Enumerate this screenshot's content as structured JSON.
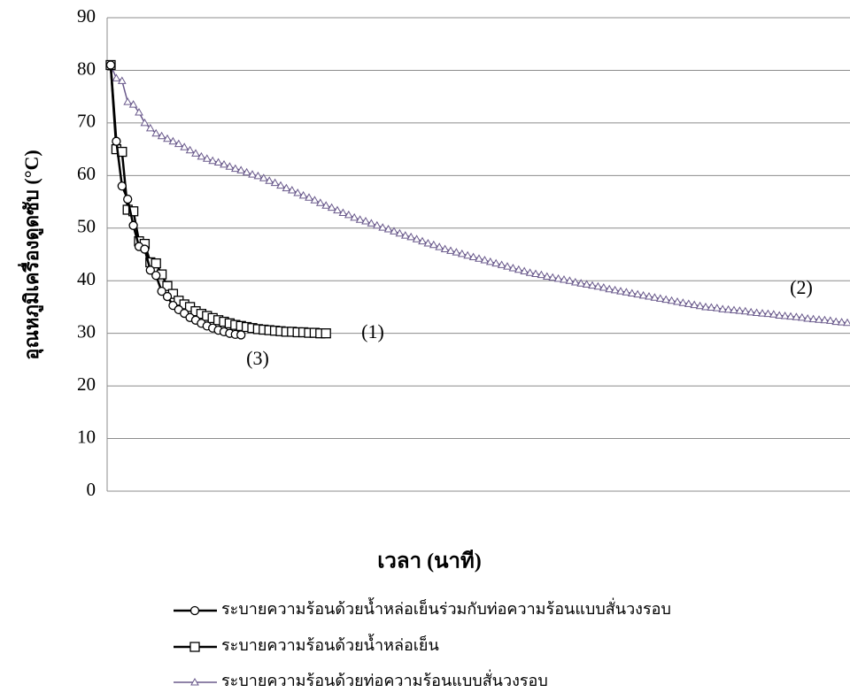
{
  "chart_data": {
    "type": "line",
    "y_label": "อุณหภูมิเครื่องดูดซับ (°C)",
    "x_label": "เวลา (นาที)",
    "ylim": [
      0,
      90
    ],
    "yticks": [
      0,
      10,
      20,
      30,
      40,
      50,
      60,
      70,
      80,
      90
    ],
    "grid": true,
    "annotations": [
      "(1)",
      "(2)",
      "(3)"
    ],
    "categories": [
      null,
      null,
      null,
      null,
      null,
      null,
      null,
      null,
      null,
      null,
      null,
      null,
      null,
      null,
      null,
      null,
      null,
      null,
      null,
      null,
      null,
      null,
      null,
      null,
      null,
      null,
      null,
      null,
      null,
      null,
      null,
      null,
      null,
      null,
      null,
      null,
      null,
      null,
      null,
      null,
      null,
      null,
      null,
      null,
      null,
      null,
      null,
      null,
      null,
      null,
      null,
      null,
      null,
      null,
      null,
      null,
      null,
      null,
      null,
      null,
      null,
      null,
      null,
      null,
      null,
      null,
      null,
      null,
      null,
      null,
      null,
      null,
      null,
      null,
      null,
      null,
      null,
      null,
      null,
      null,
      null,
      null,
      null,
      null,
      null,
      null,
      null,
      null,
      null,
      null,
      null,
      null,
      null,
      null,
      null,
      null,
      null,
      null,
      null,
      null,
      null,
      null,
      null,
      null,
      null,
      null,
      null,
      null,
      null,
      null,
      null,
      null,
      null,
      null,
      null,
      null,
      null,
      null,
      null,
      null,
      null,
      null,
      null,
      null,
      null,
      null,
      null,
      null,
      null,
      null,
      null
    ],
    "series": [
      {
        "name": "ระบายความร้อนด้วยน้ำหล่อเย็นร่วมกับท่อความร้อนแบบสั่นวงรอบ",
        "color": "#000000",
        "marker": "circle",
        "values": [
          81,
          66.5,
          58,
          55.5,
          50.5,
          46.5,
          46,
          42,
          41,
          38,
          37,
          35.3,
          34.5,
          33.8,
          33,
          32.5,
          31.9,
          31.4,
          31,
          30.6,
          30.3,
          30,
          29.8,
          29.7,
          null,
          null,
          null,
          null,
          null,
          null,
          null,
          null,
          null,
          null,
          null,
          null,
          null,
          null,
          null,
          null,
          null,
          null,
          null,
          null,
          null,
          null,
          null,
          null,
          null,
          null,
          null,
          null,
          null,
          null,
          null,
          null,
          null,
          null,
          null,
          null,
          null,
          null,
          null,
          null,
          null,
          null,
          null,
          null,
          null,
          null,
          null,
          null,
          null,
          null,
          null,
          null,
          null,
          null,
          null,
          null,
          null,
          null,
          null,
          null,
          null,
          null,
          null,
          null,
          null,
          null,
          null,
          null,
          null,
          null,
          null,
          null,
          null,
          null,
          null,
          null,
          null,
          null,
          null,
          null,
          null,
          null,
          null,
          null,
          null,
          null,
          null,
          null,
          null,
          null,
          null,
          null,
          null,
          null,
          null,
          null,
          null,
          null,
          null,
          null,
          null,
          null,
          null,
          null,
          null,
          null,
          null
        ]
      },
      {
        "name": "ระบายความร้อนด้วยน้ำหล่อเย็น",
        "color": "#000000",
        "marker": "square",
        "values": [
          81,
          65,
          64.5,
          53.5,
          53.2,
          47.5,
          47,
          43.5,
          43.3,
          41.2,
          39,
          37.5,
          36.2,
          35.5,
          35,
          34.2,
          33.7,
          33.3,
          32.9,
          32.5,
          32.2,
          31.9,
          31.6,
          31.4,
          31.2,
          31,
          30.8,
          30.7,
          30.6,
          30.5,
          30.4,
          30.3,
          30.3,
          30.2,
          30.2,
          30.1,
          30.1,
          30,
          30,
          null,
          null,
          null,
          null,
          null,
          null,
          null,
          null,
          null,
          null,
          null,
          null,
          null,
          null,
          null,
          null,
          null,
          null,
          null,
          null,
          null,
          null,
          null,
          null,
          null,
          null,
          null,
          null,
          null,
          null,
          null,
          null,
          null,
          null,
          null,
          null,
          null,
          null,
          null,
          null,
          null,
          null,
          null,
          null,
          null,
          null,
          null,
          null,
          null,
          null,
          null,
          null,
          null,
          null,
          null,
          null,
          null,
          null,
          null,
          null,
          null,
          null,
          null,
          null,
          null,
          null,
          null,
          null,
          null,
          null,
          null,
          null,
          null,
          null,
          null,
          null,
          null,
          null,
          null,
          null,
          null,
          null,
          null,
          null,
          null,
          null,
          null,
          null,
          null,
          null,
          null,
          null
        ]
      },
      {
        "name": "ระบายความร้อนด้วยท่อความร้อนแบบสั่นวงรอบ",
        "color": "#6a5a8c",
        "marker": "triangle",
        "values": [
          81,
          78.5,
          78,
          74,
          73.5,
          72,
          70,
          69,
          68,
          67.5,
          67,
          66.5,
          66,
          65.4,
          64.8,
          64.2,
          63.6,
          63.2,
          62.8,
          62.5,
          62.1,
          61.7,
          61.3,
          61,
          60.6,
          60.2,
          59.9,
          59.5,
          59,
          58.6,
          58.1,
          57.6,
          57.2,
          56.7,
          56.2,
          55.8,
          55.3,
          54.8,
          54.3,
          53.9,
          53.4,
          52.9,
          52.5,
          52,
          51.6,
          51.3,
          50.9,
          50.5,
          50.1,
          49.8,
          49.4,
          49,
          48.6,
          48.3,
          47.9,
          47.5,
          47.1,
          46.8,
          46.4,
          46,
          45.7,
          45.4,
          45.1,
          44.8,
          44.5,
          44.2,
          43.9,
          43.6,
          43.3,
          43,
          42.7,
          42.4,
          42.1,
          41.8,
          41.5,
          41.3,
          41.1,
          40.8,
          40.6,
          40.4,
          40.2,
          40,
          39.7,
          39.5,
          39.3,
          39.1,
          38.9,
          38.7,
          38.4,
          38.2,
          38,
          37.8,
          37.6,
          37.4,
          37.2,
          37,
          36.8,
          36.6,
          36.4,
          36.2,
          36,
          35.8,
          35.6,
          35.4,
          35.2,
          35,
          34.9,
          34.8,
          34.6,
          34.5,
          34.4,
          34.3,
          34.2,
          34,
          33.9,
          33.8,
          33.7,
          33.6,
          33.4,
          33.3,
          33.2,
          33.1,
          33,
          32.8,
          32.7,
          32.6,
          32.5,
          32.4,
          32.2,
          32.1,
          32
        ]
      }
    ]
  }
}
